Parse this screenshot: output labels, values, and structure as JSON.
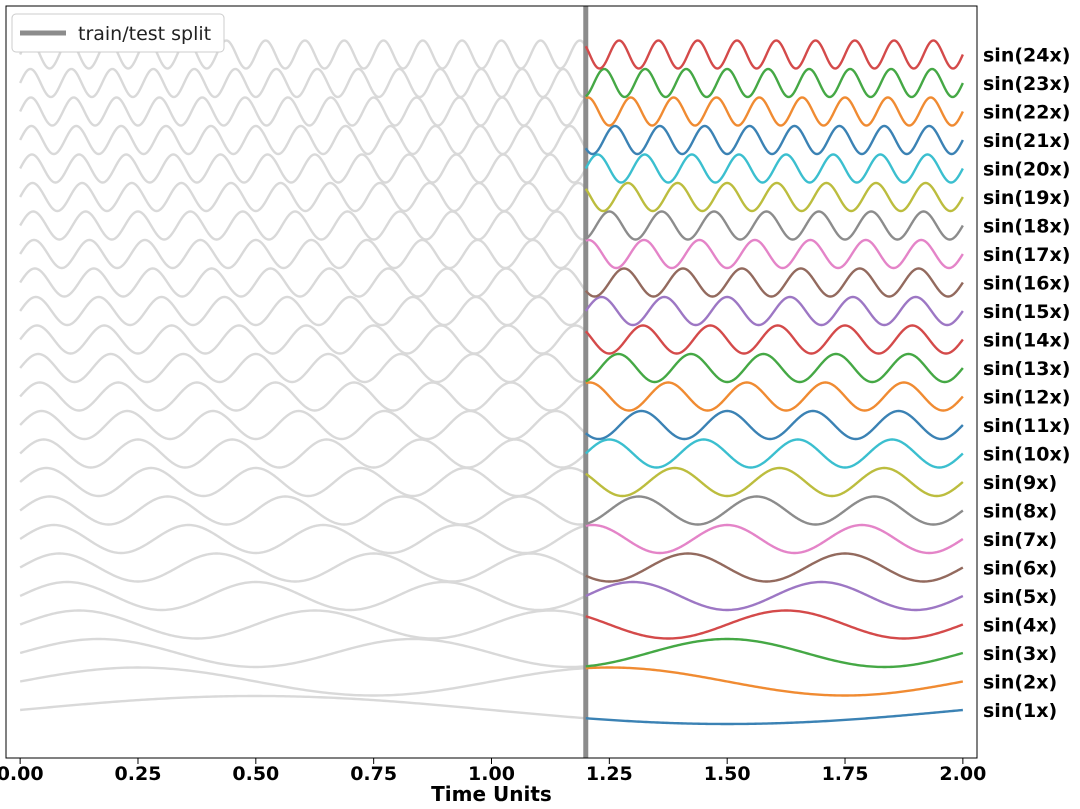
{
  "chart_data": {
    "type": "line",
    "xlabel": "Time Units",
    "xlim": [
      -0.03,
      2.03
    ],
    "x_ticks": [
      "0.00",
      "0.25",
      "0.50",
      "0.75",
      "1.00",
      "1.25",
      "1.50",
      "1.75",
      "2.00"
    ],
    "x_tick_values": [
      0.0,
      0.25,
      0.5,
      0.75,
      1.0,
      1.25,
      1.5,
      1.75,
      2.0
    ],
    "x_range": [
      0.0,
      2.0
    ],
    "split_x": 1.2,
    "legend": {
      "label": "train/test split",
      "color": "#8c8c8c",
      "placement": "upper-left"
    },
    "train_color": "#d9d9d9",
    "series": [
      {
        "name": "sin(1x)",
        "freq": 1,
        "color": "#3b82b4"
      },
      {
        "name": "sin(2x)",
        "freq": 2,
        "color": "#f08b32"
      },
      {
        "name": "sin(3x)",
        "freq": 3,
        "color": "#45a845"
      },
      {
        "name": "sin(4x)",
        "freq": 4,
        "color": "#d44a4a"
      },
      {
        "name": "sin(5x)",
        "freq": 5,
        "color": "#9d77c4"
      },
      {
        "name": "sin(6x)",
        "freq": 6,
        "color": "#936a5e"
      },
      {
        "name": "sin(7x)",
        "freq": 7,
        "color": "#e484c8"
      },
      {
        "name": "sin(8x)",
        "freq": 8,
        "color": "#8c8c8c"
      },
      {
        "name": "sin(9x)",
        "freq": 9,
        "color": "#bcbd3e"
      },
      {
        "name": "sin(10x)",
        "freq": 10,
        "color": "#3bbfcf"
      },
      {
        "name": "sin(11x)",
        "freq": 11,
        "color": "#3b82b4"
      },
      {
        "name": "sin(12x)",
        "freq": 12,
        "color": "#f08b32"
      },
      {
        "name": "sin(13x)",
        "freq": 13,
        "color": "#45a845"
      },
      {
        "name": "sin(14x)",
        "freq": 14,
        "color": "#d44a4a"
      },
      {
        "name": "sin(15x)",
        "freq": 15,
        "color": "#9d77c4"
      },
      {
        "name": "sin(16x)",
        "freq": 16,
        "color": "#936a5e"
      },
      {
        "name": "sin(17x)",
        "freq": 17,
        "color": "#e484c8"
      },
      {
        "name": "sin(18x)",
        "freq": 18,
        "color": "#8c8c8c"
      },
      {
        "name": "sin(19x)",
        "freq": 19,
        "color": "#bcbd3e"
      },
      {
        "name": "sin(20x)",
        "freq": 20,
        "color": "#3bbfcf"
      },
      {
        "name": "sin(21x)",
        "freq": 21,
        "color": "#3b82b4"
      },
      {
        "name": "sin(22x)",
        "freq": 22,
        "color": "#f08b32"
      },
      {
        "name": "sin(23x)",
        "freq": 23,
        "color": "#45a845"
      },
      {
        "name": "sin(24x)",
        "freq": 24,
        "color": "#d44a4a"
      }
    ],
    "grid": false
  }
}
